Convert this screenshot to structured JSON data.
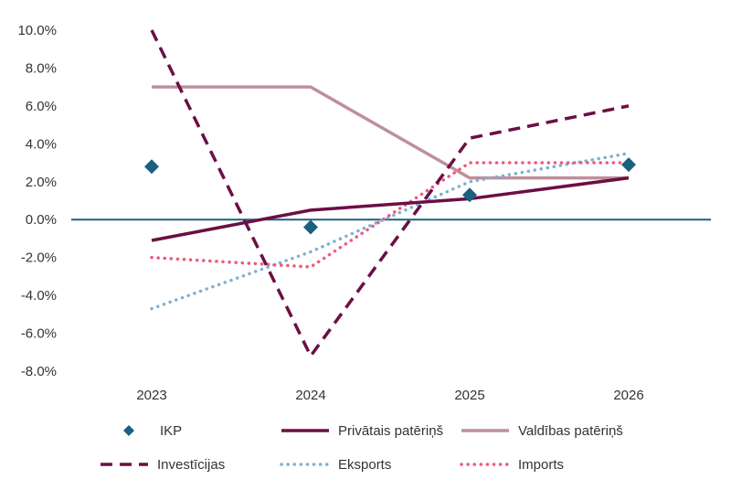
{
  "chart_data": {
    "type": "line",
    "categories": [
      "2023",
      "2024",
      "2025",
      "2026"
    ],
    "ylim": [
      -8,
      10
    ],
    "ytick_step": 2,
    "ytick_labels": [
      "-8.0%",
      "-6.0%",
      "-4.0%",
      "-2.0%",
      "0.0%",
      "2.0%",
      "4.0%",
      "6.0%",
      "8.0%",
      "10.0%"
    ],
    "grid": false,
    "legend_position": "bottom",
    "series": [
      {
        "name": "IKP",
        "style": "marker-diamond",
        "color": "#1a6180",
        "values": [
          2.8,
          -0.4,
          1.3,
          2.9
        ]
      },
      {
        "name": "Privātais patēriņš",
        "style": "solid",
        "color": "#6b0f45",
        "values": [
          -1.1,
          0.5,
          1.1,
          2.2
        ]
      },
      {
        "name": "Valdības patēriņš",
        "style": "solid",
        "color": "#bf8f9c",
        "values": [
          7.0,
          7.0,
          2.2,
          2.2
        ]
      },
      {
        "name": "Investīcijas",
        "style": "dashed",
        "color": "#6b0f45",
        "values": [
          10.0,
          -7.2,
          4.3,
          6.0
        ]
      },
      {
        "name": "Eksports",
        "style": "dotted",
        "color": "#7fb0d0",
        "values": [
          -4.7,
          -1.7,
          2.0,
          3.5
        ]
      },
      {
        "name": "Imports",
        "style": "dotted",
        "color": "#ee5a7a",
        "values": [
          -2.0,
          -2.5,
          3.0,
          3.0
        ]
      }
    ],
    "zero_line_color": "#1a6180"
  }
}
